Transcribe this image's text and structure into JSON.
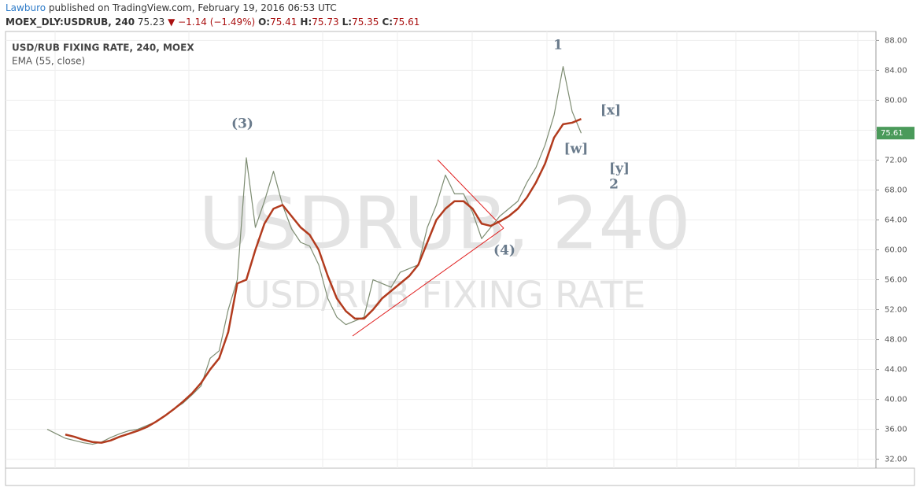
{
  "header": {
    "publisher": "Lawburo",
    "published": "published on TradingView.com, February 19, 2016 06:53 UTC",
    "symbol": "MOEX_DLY:USDRUB, 240",
    "last": "75.23",
    "change": "▼ −1.14 (−1.49%)",
    "ohlc": [
      {
        "label": "O:",
        "value": "75.41"
      },
      {
        "label": "H:",
        "value": "75.73"
      },
      {
        "label": "L:",
        "value": "75.35"
      },
      {
        "label": "C:",
        "value": "75.61"
      }
    ]
  },
  "chart_data": {
    "type": "line",
    "title": "USD/RUB FIXING RATE, 240, MOEX",
    "watermark": "USDRUB, 240",
    "watermark_sub": "USD/RUB FIXING RATE",
    "series": [
      {
        "name": "USD/RUB FIXING RATE",
        "color": "#7d8c72",
        "values": [
          36.0,
          35.4,
          34.8,
          34.5,
          34.2,
          34.0,
          34.3,
          34.9,
          35.4,
          35.8,
          36.0,
          36.5,
          37.0,
          37.8,
          38.7,
          39.5,
          40.6,
          41.8,
          45.5,
          46.5,
          52.0,
          56.0,
          72.3,
          63.0,
          66.5,
          70.5,
          66.0,
          62.8,
          61.0,
          60.5,
          58.0,
          53.5,
          51.0,
          50.0,
          50.5,
          51.0,
          56.0,
          55.5,
          55.0,
          57.0,
          57.5,
          58.0,
          63.0,
          66.0,
          70.0,
          67.5,
          67.5,
          65.0,
          61.5,
          63.0,
          64.5,
          65.5,
          66.5,
          69.0,
          71.0,
          74.0,
          78.0,
          84.5,
          78.5,
          75.6
        ]
      },
      {
        "name": "EMA (55, close)",
        "color": "#b23b1e",
        "values": [
          null,
          null,
          35.3,
          35.0,
          34.6,
          34.3,
          34.2,
          34.5,
          35.0,
          35.4,
          35.8,
          36.3,
          37.0,
          37.8,
          38.7,
          39.7,
          40.8,
          42.2,
          44.0,
          45.5,
          49.0,
          55.5,
          56.0,
          60.0,
          63.5,
          65.5,
          66.0,
          64.5,
          63.0,
          62.0,
          60.0,
          56.5,
          53.5,
          51.8,
          50.8,
          50.8,
          52.0,
          53.5,
          54.5,
          55.5,
          56.5,
          58.0,
          61.0,
          64.0,
          65.5,
          66.5,
          66.5,
          65.5,
          63.5,
          63.2,
          63.8,
          64.5,
          65.5,
          67.0,
          69.0,
          71.5,
          75.0,
          76.8,
          77.0,
          77.5
        ]
      }
    ],
    "last_value": {
      "value": 75.61,
      "label": "75.61"
    },
    "ylim": [
      30.8,
      89.2
    ],
    "yticks": [
      {
        "value": 88,
        "label": "88.00"
      },
      {
        "value": 84,
        "label": "84.00"
      },
      {
        "value": 80,
        "label": "80.00"
      },
      {
        "value": 76,
        "label": "76.00"
      },
      {
        "value": 72,
        "label": "72.00"
      },
      {
        "value": 68,
        "label": "68.00"
      },
      {
        "value": 64,
        "label": "64.00"
      },
      {
        "value": 60,
        "label": "60.00"
      },
      {
        "value": 56,
        "label": "56.00"
      },
      {
        "value": 52,
        "label": "52.00"
      },
      {
        "value": 48,
        "label": "48.00"
      },
      {
        "value": 44,
        "label": "44.00"
      },
      {
        "value": 40,
        "label": "40.00"
      },
      {
        "value": 36,
        "label": "36.00"
      },
      {
        "value": 32,
        "label": "32.00"
      }
    ],
    "grid": true,
    "annotations": [
      "(3)",
      "1",
      "[x]",
      "[w]",
      "[y]",
      "2",
      "(4)"
    ]
  }
}
